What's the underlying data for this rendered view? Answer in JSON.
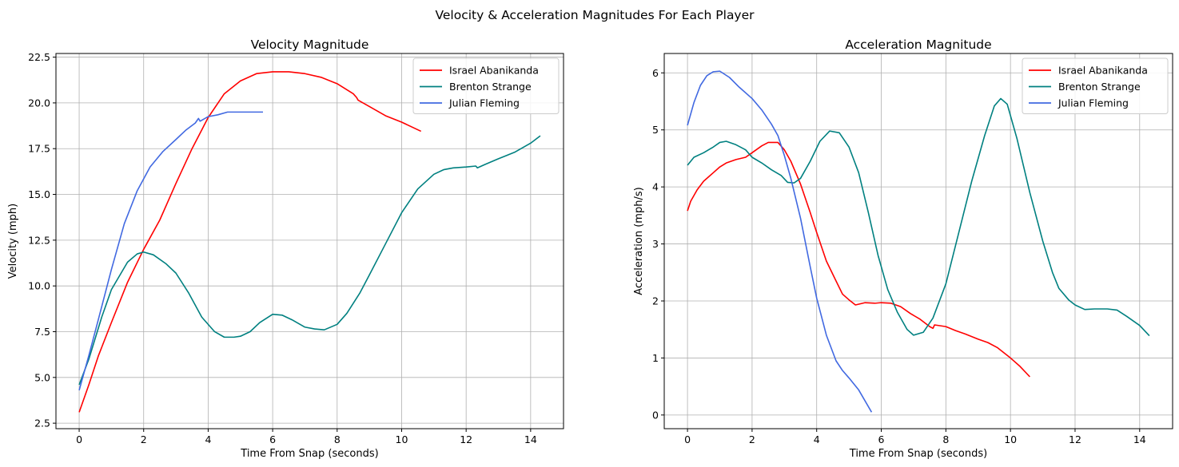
{
  "figure_title": "Velocity & Acceleration Magnitudes For Each Player",
  "chart_data": [
    {
      "type": "line",
      "title": "Velocity Magnitude",
      "xlabel": "Time From Snap (seconds)",
      "ylabel": "Velocity (mph)",
      "xlim": [
        -0.72,
        15.02
      ],
      "ylim": [
        2.2,
        22.7
      ],
      "xticks": [
        0,
        2,
        4,
        6,
        8,
        10,
        12,
        14
      ],
      "xtick_labels": [
        "0",
        "2",
        "4",
        "6",
        "8",
        "10",
        "12",
        "14"
      ],
      "yticks": [
        2.5,
        5.0,
        7.5,
        10.0,
        12.5,
        15.0,
        17.5,
        20.0,
        22.5
      ],
      "ytick_labels": [
        "2.5",
        "5.0",
        "7.5",
        "10.0",
        "12.5",
        "15.0",
        "17.5",
        "20.0",
        "22.5"
      ],
      "grid": true,
      "legend_position": "top-right",
      "series": [
        {
          "name": "Israel Abanikanda",
          "color": "#ff0000",
          "points": [
            [
              0,
              3.1
            ],
            [
              0.3,
              4.6
            ],
            [
              0.6,
              6.2
            ],
            [
              1,
              8
            ],
            [
              1.5,
              10.2
            ],
            [
              2,
              12
            ],
            [
              2.5,
              13.6
            ],
            [
              3,
              15.6
            ],
            [
              3.5,
              17.5
            ],
            [
              4,
              19.2
            ],
            [
              4.5,
              20.5
            ],
            [
              5,
              21.2
            ],
            [
              5.5,
              21.6
            ],
            [
              6,
              21.7
            ],
            [
              6.5,
              21.7
            ],
            [
              7,
              21.6
            ],
            [
              7.5,
              21.4
            ],
            [
              8,
              21.05
            ],
            [
              8.5,
              20.5
            ],
            [
              8.6,
              20.3
            ],
            [
              8.65,
              20.15
            ],
            [
              9,
              19.8
            ],
            [
              9.5,
              19.3
            ],
            [
              10,
              18.95
            ],
            [
              10.6,
              18.45
            ]
          ]
        },
        {
          "name": "Brenton Strange",
          "color": "#008080",
          "points": [
            [
              0,
              4.6
            ],
            [
              0.3,
              6
            ],
            [
              0.7,
              8.3
            ],
            [
              1,
              9.8
            ],
            [
              1.5,
              11.3
            ],
            [
              1.8,
              11.75
            ],
            [
              2,
              11.85
            ],
            [
              2.3,
              11.7
            ],
            [
              2.7,
              11.2
            ],
            [
              3,
              10.7
            ],
            [
              3.4,
              9.6
            ],
            [
              3.8,
              8.3
            ],
            [
              4.2,
              7.5
            ],
            [
              4.5,
              7.2
            ],
            [
              4.8,
              7.2
            ],
            [
              5,
              7.25
            ],
            [
              5.3,
              7.5
            ],
            [
              5.6,
              8
            ],
            [
              6,
              8.45
            ],
            [
              6.3,
              8.4
            ],
            [
              6.6,
              8.15
            ],
            [
              7,
              7.75
            ],
            [
              7.3,
              7.65
            ],
            [
              7.6,
              7.6
            ],
            [
              8,
              7.9
            ],
            [
              8.3,
              8.5
            ],
            [
              8.7,
              9.6
            ],
            [
              9,
              10.6
            ],
            [
              9.5,
              12.3
            ],
            [
              10,
              14
            ],
            [
              10.5,
              15.3
            ],
            [
              11,
              16.1
            ],
            [
              11.3,
              16.35
            ],
            [
              11.6,
              16.45
            ],
            [
              12,
              16.5
            ],
            [
              12.3,
              16.55
            ],
            [
              12.35,
              16.45
            ],
            [
              12.6,
              16.65
            ],
            [
              13,
              16.95
            ],
            [
              13.5,
              17.3
            ],
            [
              14,
              17.8
            ],
            [
              14.3,
              18.2
            ]
          ]
        },
        {
          "name": "Julian Fleming",
          "color": "#4169e1",
          "points": [
            [
              0,
              4.3
            ],
            [
              0.3,
              6.2
            ],
            [
              0.6,
              8.2
            ],
            [
              1,
              10.9
            ],
            [
              1.4,
              13.4
            ],
            [
              1.8,
              15.2
            ],
            [
              2.2,
              16.5
            ],
            [
              2.6,
              17.35
            ],
            [
              3,
              18
            ],
            [
              3.3,
              18.5
            ],
            [
              3.6,
              18.9
            ],
            [
              3.7,
              19.15
            ],
            [
              3.75,
              19
            ],
            [
              4,
              19.25
            ],
            [
              4.3,
              19.35
            ],
            [
              4.6,
              19.5
            ],
            [
              5,
              19.5
            ],
            [
              5.7,
              19.5
            ]
          ]
        }
      ]
    },
    {
      "type": "line",
      "title": "Acceleration Magnitude",
      "xlabel": "Time From Snap (seconds)",
      "ylabel": "Acceleration (mph/s)",
      "xlim": [
        -0.72,
        15.02
      ],
      "ylim": [
        -0.24,
        6.34
      ],
      "xticks": [
        0,
        2,
        4,
        6,
        8,
        10,
        12,
        14
      ],
      "xtick_labels": [
        "0",
        "2",
        "4",
        "6",
        "8",
        "10",
        "12",
        "14"
      ],
      "yticks": [
        0,
        1,
        2,
        3,
        4,
        5,
        6
      ],
      "ytick_labels": [
        "0",
        "1",
        "2",
        "3",
        "4",
        "5",
        "6"
      ],
      "grid": true,
      "legend_position": "top-right",
      "series": [
        {
          "name": "Israel Abanikanda",
          "color": "#ff0000",
          "points": [
            [
              0,
              3.58
            ],
            [
              0.1,
              3.75
            ],
            [
              0.3,
              3.95
            ],
            [
              0.5,
              4.1
            ],
            [
              0.8,
              4.25
            ],
            [
              1,
              4.35
            ],
            [
              1.2,
              4.42
            ],
            [
              1.5,
              4.48
            ],
            [
              1.8,
              4.52
            ],
            [
              2,
              4.6
            ],
            [
              2.3,
              4.72
            ],
            [
              2.5,
              4.78
            ],
            [
              2.8,
              4.78
            ],
            [
              3,
              4.65
            ],
            [
              3.2,
              4.45
            ],
            [
              3.5,
              4.05
            ],
            [
              3.8,
              3.55
            ],
            [
              4,
              3.2
            ],
            [
              4.3,
              2.7
            ],
            [
              4.6,
              2.35
            ],
            [
              4.8,
              2.12
            ],
            [
              5,
              2.02
            ],
            [
              5.2,
              1.93
            ],
            [
              5.5,
              1.97
            ],
            [
              5.8,
              1.96
            ],
            [
              6,
              1.97
            ],
            [
              6.3,
              1.96
            ],
            [
              6.6,
              1.9
            ],
            [
              6.9,
              1.78
            ],
            [
              7.2,
              1.68
            ],
            [
              7.5,
              1.55
            ],
            [
              7.6,
              1.52
            ],
            [
              7.65,
              1.58
            ],
            [
              8,
              1.55
            ],
            [
              8.3,
              1.48
            ],
            [
              8.6,
              1.42
            ],
            [
              9,
              1.33
            ],
            [
              9.3,
              1.27
            ],
            [
              9.6,
              1.18
            ],
            [
              10,
              1
            ],
            [
              10.3,
              0.85
            ],
            [
              10.6,
              0.67
            ]
          ]
        },
        {
          "name": "Brenton Strange",
          "color": "#008080",
          "points": [
            [
              0,
              4.38
            ],
            [
              0.2,
              4.52
            ],
            [
              0.5,
              4.6
            ],
            [
              0.8,
              4.7
            ],
            [
              1,
              4.78
            ],
            [
              1.2,
              4.8
            ],
            [
              1.5,
              4.74
            ],
            [
              1.8,
              4.65
            ],
            [
              2,
              4.52
            ],
            [
              2.3,
              4.42
            ],
            [
              2.6,
              4.3
            ],
            [
              2.9,
              4.2
            ],
            [
              3.1,
              4.08
            ],
            [
              3.3,
              4.07
            ],
            [
              3.5,
              4.15
            ],
            [
              3.8,
              4.45
            ],
            [
              4.1,
              4.8
            ],
            [
              4.4,
              4.98
            ],
            [
              4.7,
              4.95
            ],
            [
              5,
              4.7
            ],
            [
              5.3,
              4.25
            ],
            [
              5.6,
              3.55
            ],
            [
              5.9,
              2.8
            ],
            [
              6.2,
              2.2
            ],
            [
              6.5,
              1.8
            ],
            [
              6.8,
              1.5
            ],
            [
              7,
              1.4
            ],
            [
              7.3,
              1.45
            ],
            [
              7.6,
              1.7
            ],
            [
              8,
              2.3
            ],
            [
              8.4,
              3.2
            ],
            [
              8.8,
              4.1
            ],
            [
              9.2,
              4.9
            ],
            [
              9.5,
              5.42
            ],
            [
              9.7,
              5.55
            ],
            [
              9.9,
              5.45
            ],
            [
              10.2,
              4.85
            ],
            [
              10.6,
              3.9
            ],
            [
              11,
              3.05
            ],
            [
              11.3,
              2.5
            ],
            [
              11.5,
              2.22
            ],
            [
              11.8,
              2.02
            ],
            [
              12,
              1.93
            ],
            [
              12.3,
              1.85
            ],
            [
              12.6,
              1.86
            ],
            [
              13,
              1.86
            ],
            [
              13.3,
              1.84
            ],
            [
              13.6,
              1.73
            ],
            [
              14,
              1.57
            ],
            [
              14.3,
              1.39
            ]
          ]
        },
        {
          "name": "Julian Fleming",
          "color": "#4169e1",
          "points": [
            [
              0,
              5.08
            ],
            [
              0.2,
              5.48
            ],
            [
              0.4,
              5.78
            ],
            [
              0.6,
              5.95
            ],
            [
              0.8,
              6.02
            ],
            [
              1,
              6.03
            ],
            [
              1.3,
              5.92
            ],
            [
              1.6,
              5.75
            ],
            [
              2,
              5.55
            ],
            [
              2.3,
              5.35
            ],
            [
              2.6,
              5.1
            ],
            [
              2.8,
              4.9
            ],
            [
              3,
              4.55
            ],
            [
              3.2,
              4.15
            ],
            [
              3.5,
              3.45
            ],
            [
              3.8,
              2.6
            ],
            [
              4,
              2.05
            ],
            [
              4.3,
              1.4
            ],
            [
              4.6,
              0.95
            ],
            [
              4.8,
              0.78
            ],
            [
              5,
              0.65
            ],
            [
              5.3,
              0.44
            ],
            [
              5.7,
              0.05
            ]
          ]
        }
      ]
    }
  ]
}
